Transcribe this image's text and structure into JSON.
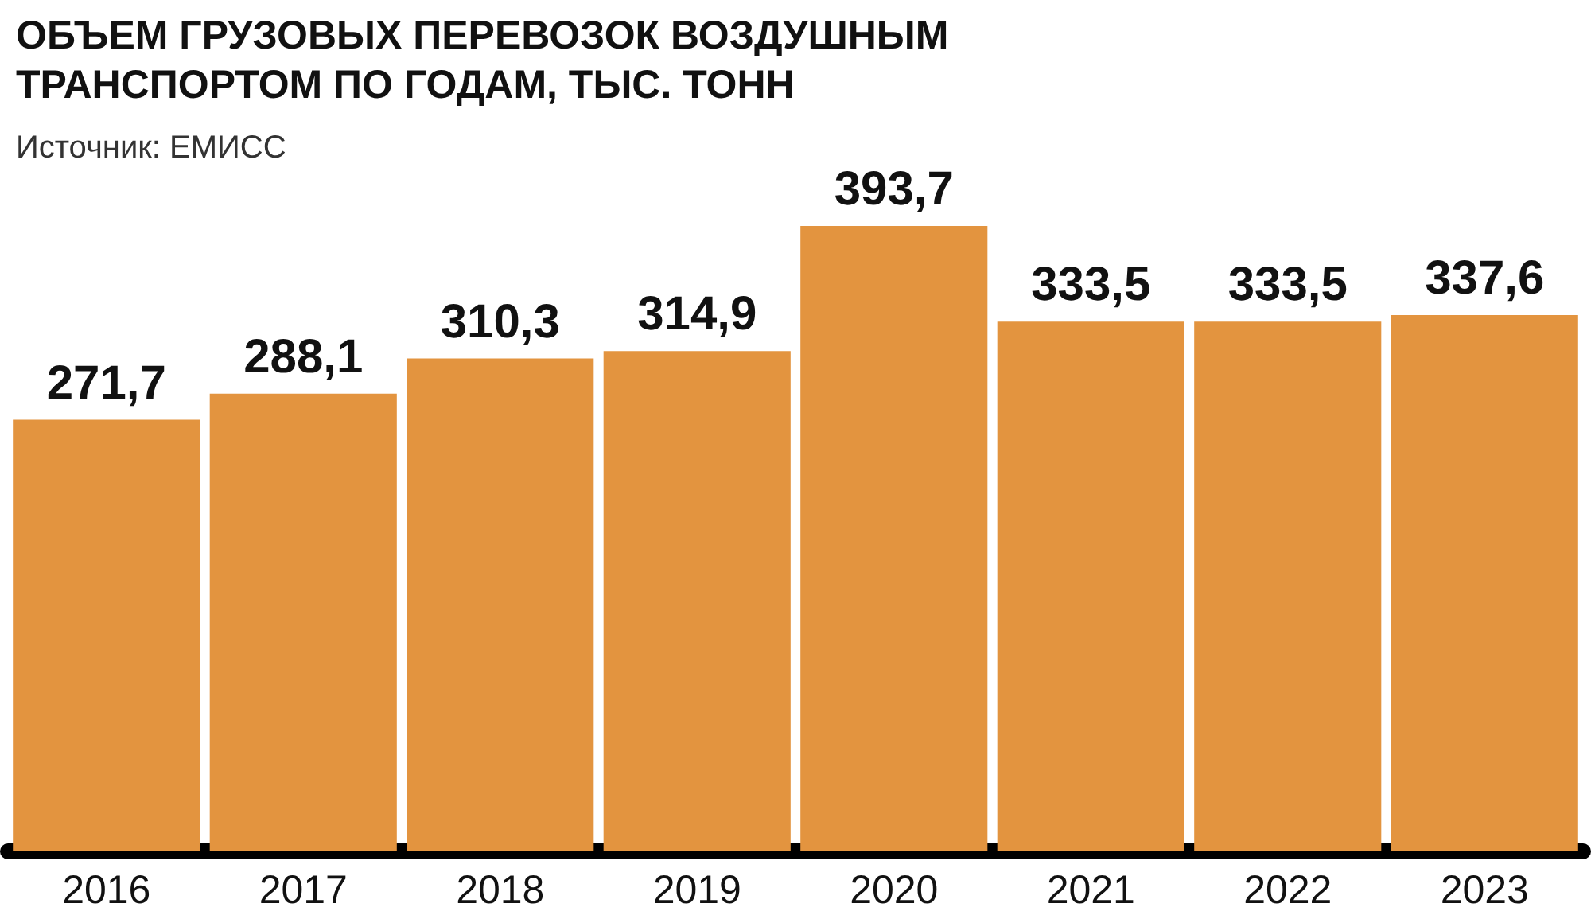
{
  "chart_data": {
    "type": "bar",
    "title": "ОБЪЕМ ГРУЗОВЫХ ПЕРЕВОЗОК ВОЗДУШНЫМ ТРАНСПОРТОМ ПО ГОДАМ, ТЫС. ТОНН",
    "annotations": [
      "Источник: ЕМИСС"
    ],
    "categories": [
      "2016",
      "2017",
      "2018",
      "2019",
      "2020",
      "2021",
      "2022",
      "2023"
    ],
    "values": [
      271.7,
      288.1,
      310.3,
      314.9,
      393.7,
      333.5,
      333.5,
      337.6
    ],
    "value_labels": [
      "271,7",
      "288,1",
      "310,3",
      "314,9",
      "393,7",
      "333,5",
      "333,5",
      "337,6"
    ],
    "color": "#e3943f"
  }
}
